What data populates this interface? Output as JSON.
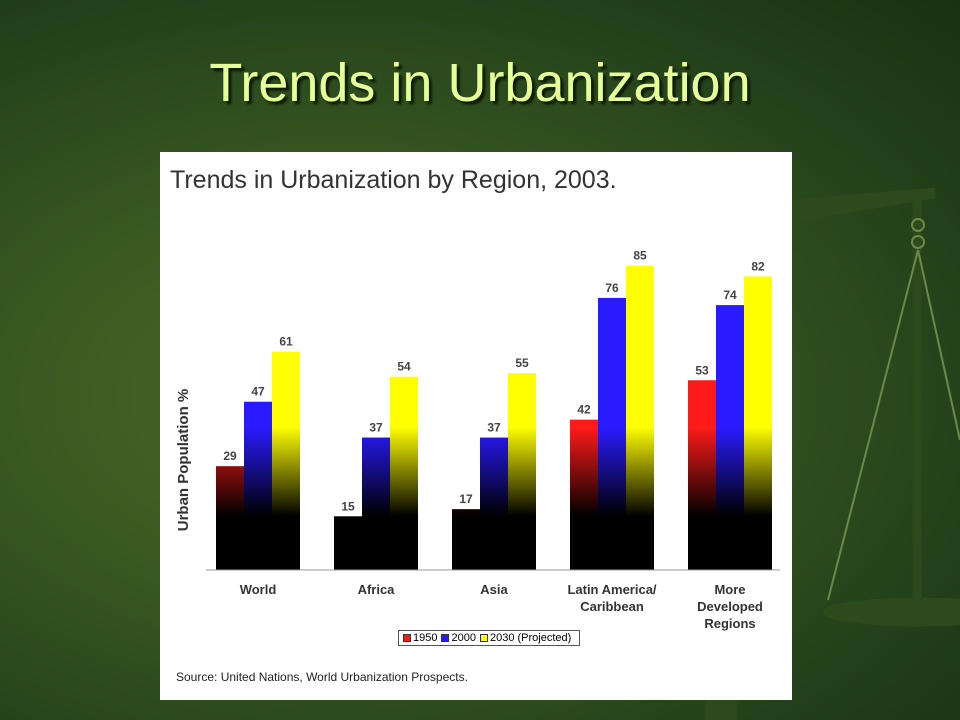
{
  "slide": {
    "title": "Trends in Urbanization"
  },
  "chart_data": {
    "type": "bar",
    "title": "Trends in Urbanization by Region, 2003.",
    "ylabel": "Urban Population %",
    "xlabel": "",
    "ylim": [
      0,
      100
    ],
    "grid": false,
    "legend_position": "bottom",
    "categories": [
      [
        "World"
      ],
      [
        "Africa"
      ],
      [
        "Asia"
      ],
      [
        "Latin America/",
        "Caribbean"
      ],
      [
        "More",
        "Developed",
        "Regions"
      ]
    ],
    "series": [
      {
        "name": "1950",
        "color": "#ff1a1a",
        "values": [
          29,
          15,
          17,
          42,
          53
        ]
      },
      {
        "name": "2000",
        "color": "#2a1aff",
        "values": [
          47,
          37,
          37,
          76,
          74
        ]
      },
      {
        "name": "2030 (Projected)",
        "color": "#ffff00",
        "values": [
          61,
          54,
          55,
          85,
          82
        ]
      }
    ],
    "source": "Source: United Nations, World Urbanization Prospects."
  }
}
